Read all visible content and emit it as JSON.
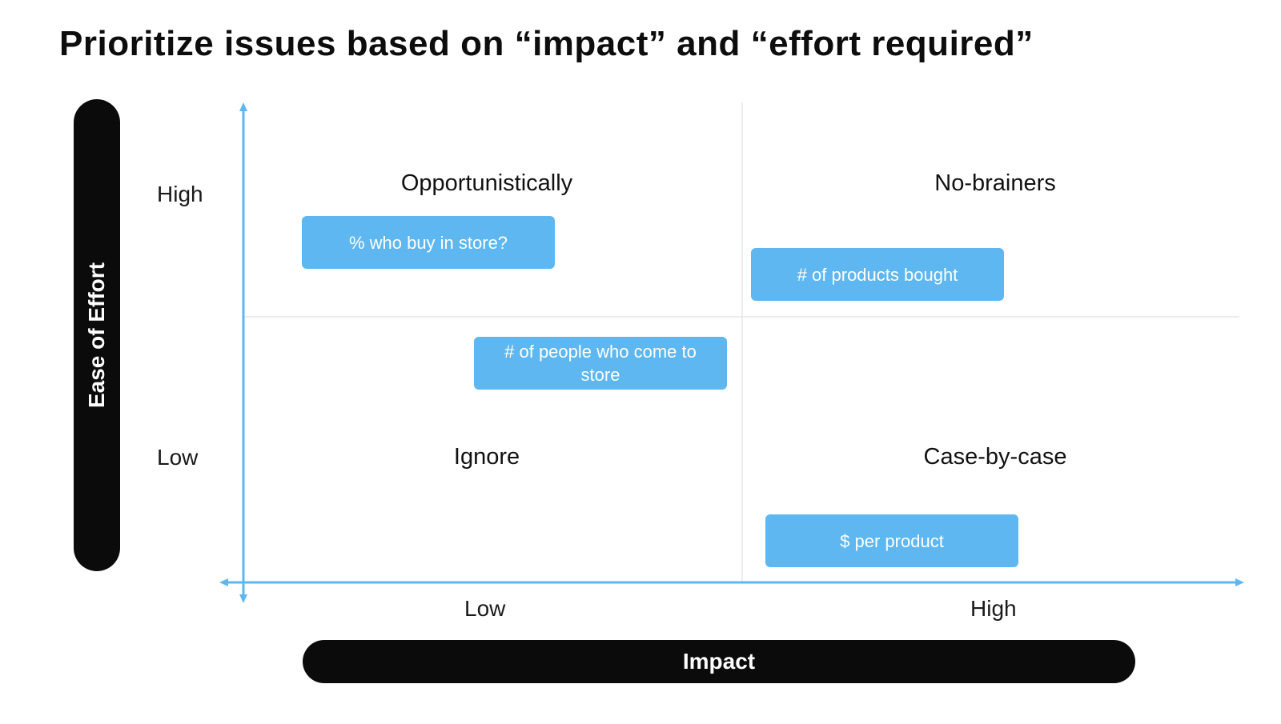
{
  "title": "Prioritize issues based on “impact” and “effort required”",
  "y_axis": {
    "label": "Ease of Effort",
    "high": "High",
    "low": "Low"
  },
  "x_axis": {
    "label": "Impact",
    "low": "Low",
    "high": "High"
  },
  "quadrants": {
    "top_left": "Opportunistically",
    "top_right": "No-brainers",
    "bottom_left": "Ignore",
    "bottom_right": "Case-by-case"
  },
  "cards": [
    {
      "text": "% who buy in store?"
    },
    {
      "text": "# of products bought"
    },
    {
      "text": "# of people who come to store"
    },
    {
      "text": "$ per product"
    }
  ],
  "colors": {
    "accent": "#5eb7f0",
    "pill": "#0b0b0b",
    "divider": "#e6e6e6"
  }
}
